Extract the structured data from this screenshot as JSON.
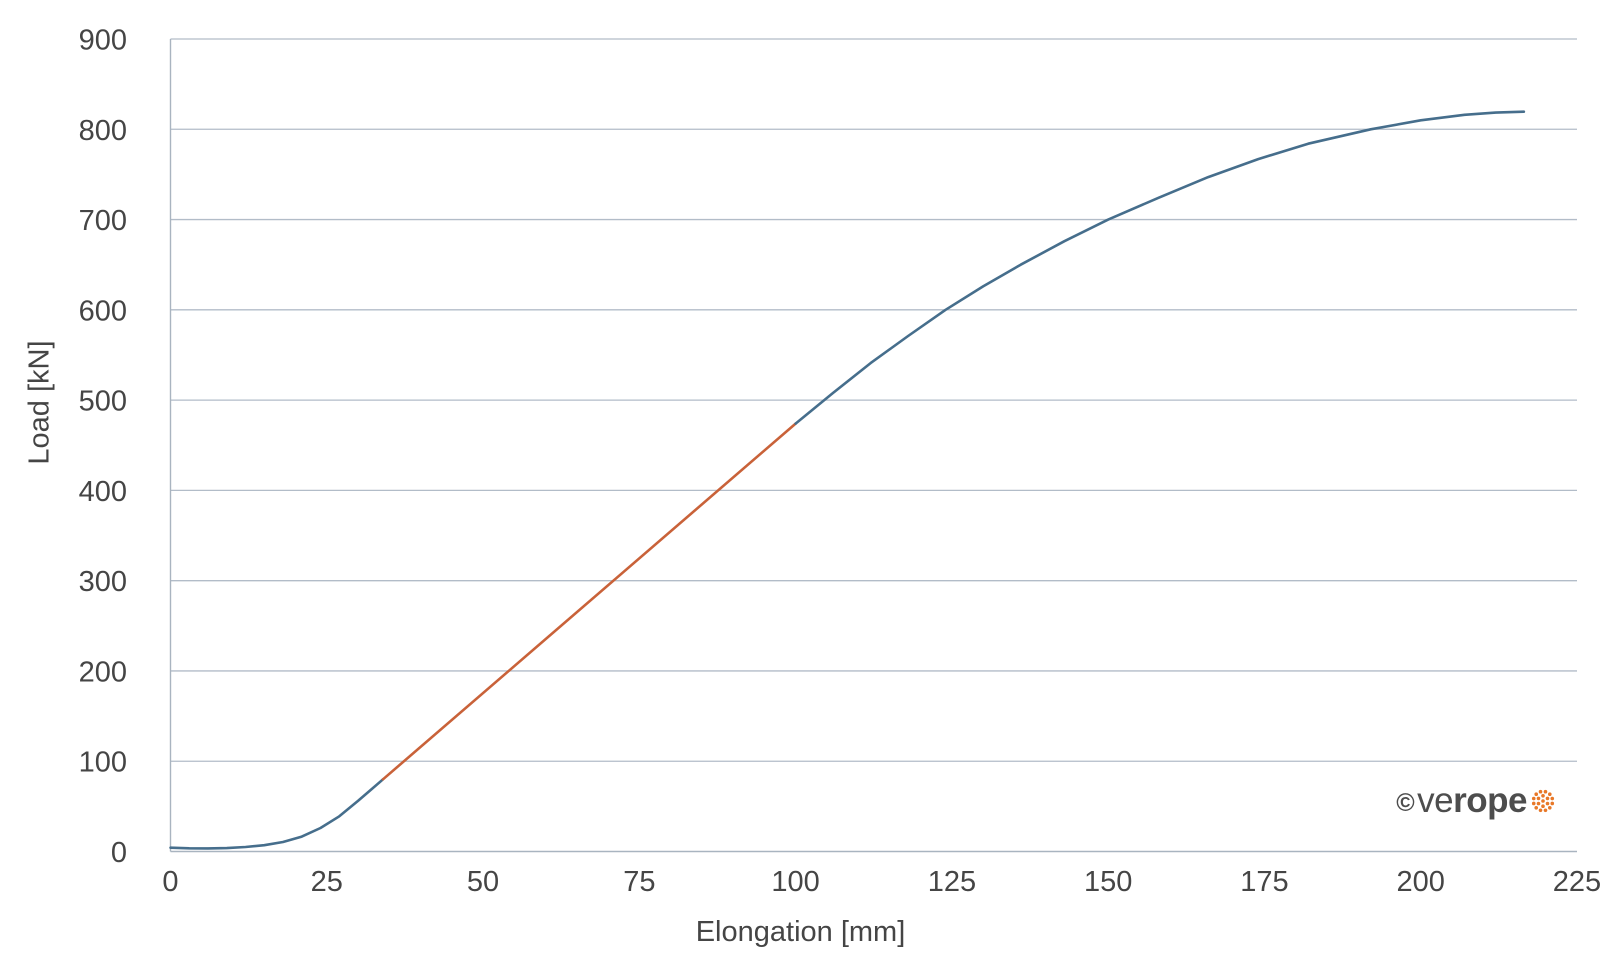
{
  "chart_data": {
    "type": "line",
    "title": "",
    "xlabel": "Elongation [mm]",
    "ylabel": "Load [kN]",
    "xlim": [
      0,
      225
    ],
    "ylim": [
      0,
      900
    ],
    "x_ticks": [
      0,
      25,
      50,
      75,
      100,
      125,
      150,
      175,
      200,
      225
    ],
    "y_ticks": [
      0,
      100,
      200,
      300,
      400,
      500,
      600,
      700,
      800,
      900
    ],
    "grid": "horizontal-only",
    "legend_position": "none",
    "series": [
      {
        "name": "load-curve-initial-segment",
        "color": "#466E8C",
        "points": [
          [
            0,
            4.2
          ],
          [
            3,
            3.6
          ],
          [
            6,
            3.4
          ],
          [
            9,
            3.8
          ],
          [
            12,
            5
          ],
          [
            15,
            7
          ],
          [
            18,
            10.5
          ],
          [
            21,
            16.5
          ],
          [
            24,
            26
          ],
          [
            27,
            39
          ],
          [
            30,
            56
          ],
          [
            32,
            68
          ],
          [
            34,
            80
          ]
        ]
      },
      {
        "name": "load-curve-linear-segment",
        "color": "#C96239",
        "points": [
          [
            34,
            80
          ],
          [
            100,
            474
          ]
        ]
      },
      {
        "name": "load-curve-upper-segment",
        "color": "#466E8C",
        "points": [
          [
            100,
            474
          ],
          [
            106,
            508
          ],
          [
            112,
            541
          ],
          [
            118,
            571
          ],
          [
            124,
            600
          ],
          [
            130,
            626
          ],
          [
            136,
            650
          ],
          [
            143,
            676
          ],
          [
            150,
            700
          ],
          [
            158,
            724
          ],
          [
            166,
            747
          ],
          [
            174,
            767
          ],
          [
            182,
            784
          ],
          [
            192,
            800
          ],
          [
            200,
            810
          ],
          [
            207,
            816
          ],
          [
            212,
            818.5
          ],
          [
            216.5,
            819.5
          ]
        ]
      }
    ]
  },
  "logo": {
    "copyright": "©",
    "brand_light": "ve",
    "brand_bold": "rope",
    "icon": "rope-cross-section-icon"
  },
  "colors": {
    "gridline": "#B2BCC8",
    "axis_line": "#A9B4C0",
    "tick_text": "#454545",
    "curve_blue": "#466E8C",
    "curve_orange": "#C96239",
    "logo_text": "#4D4D4D",
    "logo_icon_orange": "#E87828"
  }
}
